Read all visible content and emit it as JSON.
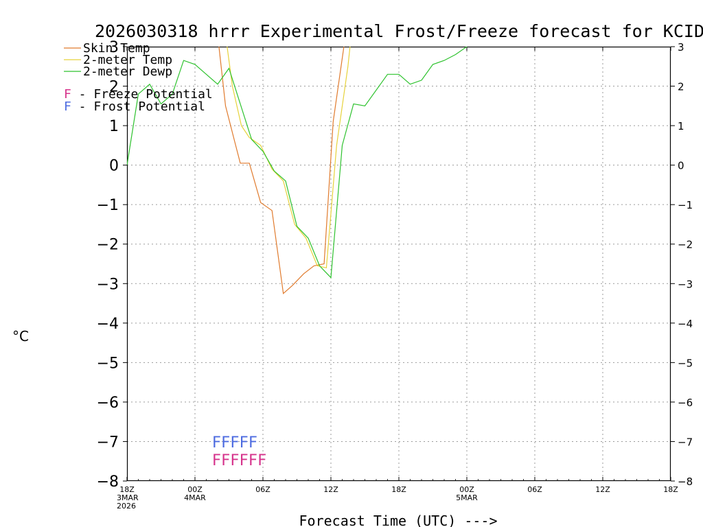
{
  "chart_data": {
    "type": "line",
    "title": "2026030318 hrrr Experimental Frost/Freeze forecast for KCID",
    "ylabel": "°C",
    "xlabel": "Forecast Time (UTC) --->",
    "ylim": [
      -8,
      3
    ],
    "xlim": [
      0,
      48
    ],
    "y_ticks": [
      3,
      2,
      1,
      0,
      -1,
      -2,
      -3,
      -4,
      -5,
      -6,
      -7,
      -8
    ],
    "x_ticks": [
      {
        "x": 0,
        "lines": [
          "18Z",
          "3MAR",
          "2026"
        ]
      },
      {
        "x": 6,
        "lines": [
          "00Z",
          "4MAR"
        ]
      },
      {
        "x": 12,
        "lines": [
          "06Z"
        ]
      },
      {
        "x": 18,
        "lines": [
          "12Z"
        ]
      },
      {
        "x": 24,
        "lines": [
          "18Z"
        ]
      },
      {
        "x": 30,
        "lines": [
          "00Z",
          "5MAR"
        ]
      },
      {
        "x": 36,
        "lines": [
          "06Z"
        ]
      },
      {
        "x": 42,
        "lines": [
          "12Z"
        ]
      },
      {
        "x": 48,
        "lines": [
          "18Z"
        ]
      }
    ],
    "grid": true,
    "series": [
      {
        "name": "Skin Temp",
        "color": "#e07a2c",
        "points": [
          [
            8,
            3.3
          ],
          [
            8.7,
            1.5
          ],
          [
            9.5,
            0.6
          ],
          [
            10,
            0.05
          ],
          [
            10.8,
            0.05
          ],
          [
            11.8,
            -0.95
          ],
          [
            12.8,
            -1.15
          ],
          [
            13.8,
            -3.25
          ],
          [
            14.6,
            -3.05
          ],
          [
            15.6,
            -2.75
          ],
          [
            16.5,
            -2.55
          ],
          [
            17.4,
            -2.5
          ],
          [
            18.2,
            1.1
          ],
          [
            19.3,
            3.3
          ]
        ]
      },
      {
        "name": "2-meter Temp",
        "color": "#e6d23a",
        "points": [
          [
            8.7,
            3.3
          ],
          [
            9.3,
            2.0
          ],
          [
            10.1,
            1.0
          ],
          [
            10.8,
            0.7
          ],
          [
            11.8,
            0.5
          ],
          [
            12.8,
            -0.1
          ],
          [
            13.8,
            -0.4
          ],
          [
            14.8,
            -1.5
          ],
          [
            15.8,
            -1.85
          ],
          [
            16.8,
            -2.55
          ],
          [
            17.6,
            -2.6
          ],
          [
            18.5,
            0.5
          ],
          [
            19.5,
            2.5
          ],
          [
            19.8,
            3.3
          ]
        ]
      },
      {
        "name": "2-meter Dewp",
        "color": "#2ec22e",
        "points": [
          [
            0,
            0.0
          ],
          [
            1,
            1.8
          ],
          [
            2,
            2.05
          ],
          [
            3,
            1.55
          ],
          [
            4,
            1.8
          ],
          [
            5,
            2.65
          ],
          [
            6,
            2.55
          ],
          [
            7,
            2.3
          ],
          [
            8,
            2.05
          ],
          [
            9,
            2.45
          ],
          [
            10,
            1.55
          ],
          [
            11,
            0.65
          ],
          [
            12,
            0.35
          ],
          [
            13,
            -0.15
          ],
          [
            14,
            -0.4
          ],
          [
            15,
            -1.55
          ],
          [
            16,
            -1.85
          ],
          [
            17,
            -2.55
          ],
          [
            18,
            -2.85
          ],
          [
            19,
            0.5
          ],
          [
            20,
            1.55
          ],
          [
            21,
            1.5
          ],
          [
            23,
            2.3
          ],
          [
            24,
            2.3
          ],
          [
            25,
            2.05
          ],
          [
            26,
            2.15
          ],
          [
            27,
            2.55
          ],
          [
            28,
            2.65
          ],
          [
            29,
            2.8
          ],
          [
            30,
            3.0
          ],
          [
            30.5,
            3.3
          ]
        ]
      }
    ],
    "legend": {
      "placement": "top-left",
      "entries": [
        {
          "label": "Skin Temp",
          "color": "#e07a2c"
        },
        {
          "label": "2-meter Temp",
          "color": "#e6d23a"
        },
        {
          "label": "2-meter Dewp",
          "color": "#2ec22e"
        }
      ],
      "potential": [
        {
          "letter": "F",
          "label": " - Freeze Potential",
          "color": "#d6338c"
        },
        {
          "letter": "F",
          "label": " - Frost Potential",
          "color": "#4d6be0"
        }
      ]
    },
    "potential_rows": [
      {
        "name": "Frost",
        "text": "FFFFF",
        "color": "#4d6be0",
        "x_start": 7.5,
        "y": -7.15
      },
      {
        "name": "Freeze",
        "text": "FFFFFF",
        "color": "#d6338c",
        "x_start": 7.5,
        "y": -7.6
      }
    ]
  }
}
